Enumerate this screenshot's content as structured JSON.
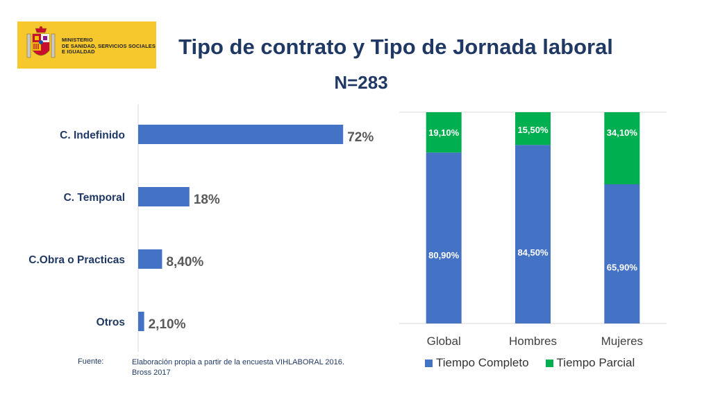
{
  "header": {
    "ministry_lines": [
      "MINISTERIO",
      "DE SANIDAD, SERVICIOS SOCIALES",
      "E IGUALDAD"
    ],
    "title": "Tipo de contrato y Tipo de Jornada laboral",
    "subtitle": "N=283"
  },
  "footer": {
    "label": "Fuente:",
    "lines": [
      "Elaboración propia a partir de la encuesta  VIHLABORAL 2016.",
      "Bross 2017"
    ]
  },
  "colors": {
    "blue": "#4472C4",
    "green": "#00B050",
    "brand_yellow": "#F7C82E",
    "title": "#1F3864"
  },
  "chart_data": [
    {
      "type": "bar",
      "orientation": "horizontal",
      "categories": [
        "C. Indefinido",
        "C. Temporal",
        "C.Obra o Practicas",
        "Otros"
      ],
      "values": [
        72,
        18,
        8.4,
        2.1
      ],
      "value_labels": [
        "72%",
        "18%",
        "8,40%",
        "2,10%"
      ],
      "xlim": [
        0,
        100
      ],
      "grid": false
    },
    {
      "type": "bar",
      "stacked": true,
      "categories": [
        "Global",
        "Hombres",
        "Mujeres"
      ],
      "series": [
        {
          "name": "Tiempo Completo",
          "values": [
            80.9,
            84.5,
            65.9
          ],
          "labels": [
            "80,90%",
            "84,50%",
            "65,90%"
          ],
          "color": "#4472C4"
        },
        {
          "name": "Tiempo Parcial",
          "values": [
            19.1,
            15.5,
            34.1
          ],
          "labels": [
            "19,10%",
            "15,50%",
            "34,10%"
          ],
          "color": "#00B050"
        }
      ],
      "ylim": [
        0,
        100
      ],
      "grid": true,
      "legend_position": "bottom"
    }
  ]
}
